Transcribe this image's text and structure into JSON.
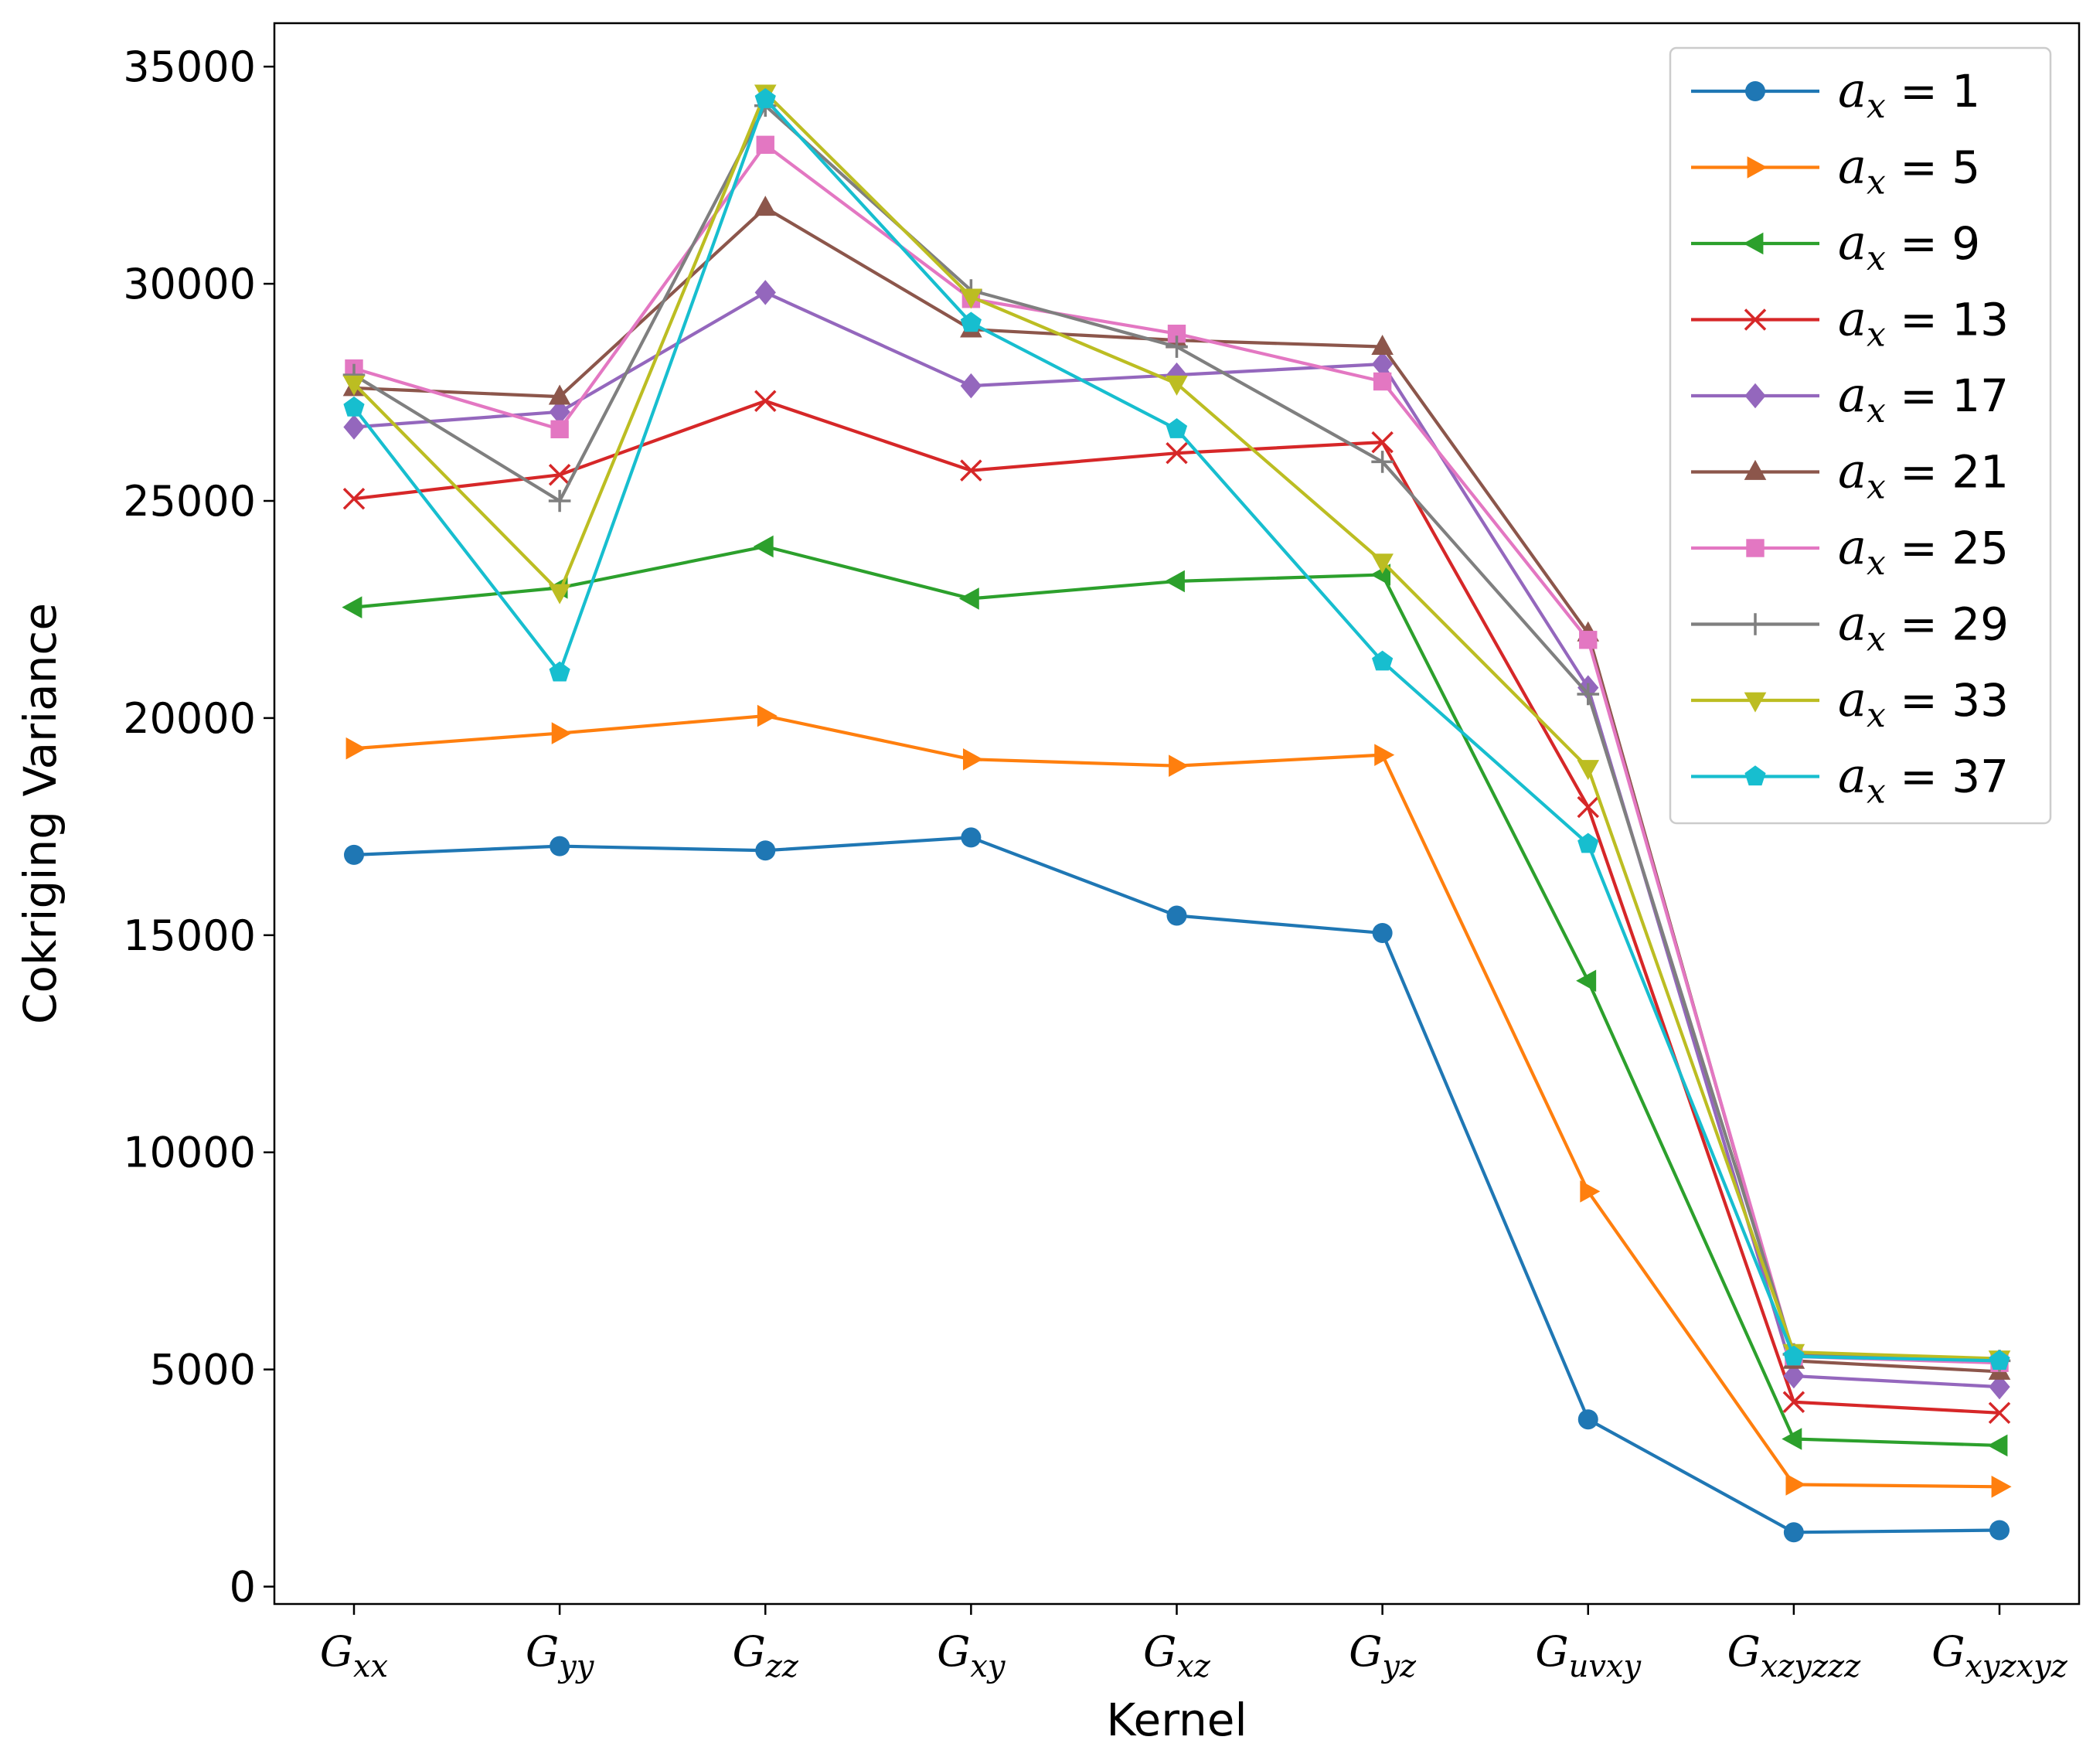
{
  "chart_data": {
    "type": "line",
    "title": "",
    "xlabel": "Kernel",
    "ylabel": "Cokriging Variance",
    "ylim": [
      -400,
      36000
    ],
    "yticks": [
      0,
      5000,
      10000,
      15000,
      20000,
      25000,
      30000,
      35000
    ],
    "grid": false,
    "legend_position": "top-right",
    "categories": [
      {
        "base": "G",
        "sub": "xx"
      },
      {
        "base": "G",
        "sub": "yy"
      },
      {
        "base": "G",
        "sub": "zz"
      },
      {
        "base": "G",
        "sub": "xy"
      },
      {
        "base": "G",
        "sub": "xz"
      },
      {
        "base": "G",
        "sub": "yz"
      },
      {
        "base": "G",
        "sub": "uvxy"
      },
      {
        "base": "G",
        "sub": "xzyzzz"
      },
      {
        "base": "G",
        "sub": "xyzxyz"
      }
    ],
    "series": [
      {
        "name": {
          "var": "a",
          "sub": "x",
          "rest": " = 1"
        },
        "color": "#1f77b4",
        "marker": "circle",
        "values": [
          16850,
          17050,
          16950,
          17250,
          15450,
          15050,
          3850,
          1250,
          1300
        ]
      },
      {
        "name": {
          "var": "a",
          "sub": "x",
          "rest": " = 5"
        },
        "color": "#ff7f0e",
        "marker": "triangle-right",
        "values": [
          19300,
          19650,
          20050,
          19050,
          18900,
          19150,
          9100,
          2350,
          2300
        ]
      },
      {
        "name": {
          "var": "a",
          "sub": "x",
          "rest": " = 9"
        },
        "color": "#2ca02c",
        "marker": "triangle-left",
        "values": [
          22550,
          23000,
          23950,
          22750,
          23150,
          23300,
          13950,
          3400,
          3250
        ]
      },
      {
        "name": {
          "var": "a",
          "sub": "x",
          "rest": " = 13"
        },
        "color": "#d62728",
        "marker": "x",
        "values": [
          25050,
          25600,
          27300,
          25700,
          26100,
          26350,
          17950,
          4250,
          4000
        ]
      },
      {
        "name": {
          "var": "a",
          "sub": "x",
          "rest": " = 17"
        },
        "color": "#9467bd",
        "marker": "diamond",
        "values": [
          26700,
          27050,
          29800,
          27650,
          27900,
          28150,
          20700,
          4850,
          4600
        ]
      },
      {
        "name": {
          "var": "a",
          "sub": "x",
          "rest": " = 21"
        },
        "color": "#8c564b",
        "marker": "triangle-up",
        "values": [
          27600,
          27400,
          31750,
          28950,
          28700,
          28550,
          21950,
          5200,
          4950
        ]
      },
      {
        "name": {
          "var": "a",
          "sub": "x",
          "rest": " = 25"
        },
        "color": "#e377c2",
        "marker": "square",
        "values": [
          28050,
          26650,
          33200,
          29650,
          28850,
          27750,
          21800,
          5300,
          5150
        ]
      },
      {
        "name": {
          "var": "a",
          "sub": "x",
          "rest": " = 29"
        },
        "color": "#7f7f7f",
        "marker": "plus",
        "values": [
          27900,
          25000,
          34100,
          29850,
          28550,
          25900,
          20550,
          5350,
          5200
        ]
      },
      {
        "name": {
          "var": "a",
          "sub": "x",
          "rest": " = 33"
        },
        "color": "#bcbd22",
        "marker": "triangle-down",
        "values": [
          27700,
          22900,
          34400,
          29700,
          27700,
          23600,
          18850,
          5400,
          5250
        ]
      },
      {
        "name": {
          "var": "a",
          "sub": "x",
          "rest": " = 37"
        },
        "color": "#17becf",
        "marker": "pentagon",
        "values": [
          27150,
          21050,
          34250,
          29100,
          26650,
          21300,
          17100,
          5300,
          5200
        ]
      }
    ]
  }
}
